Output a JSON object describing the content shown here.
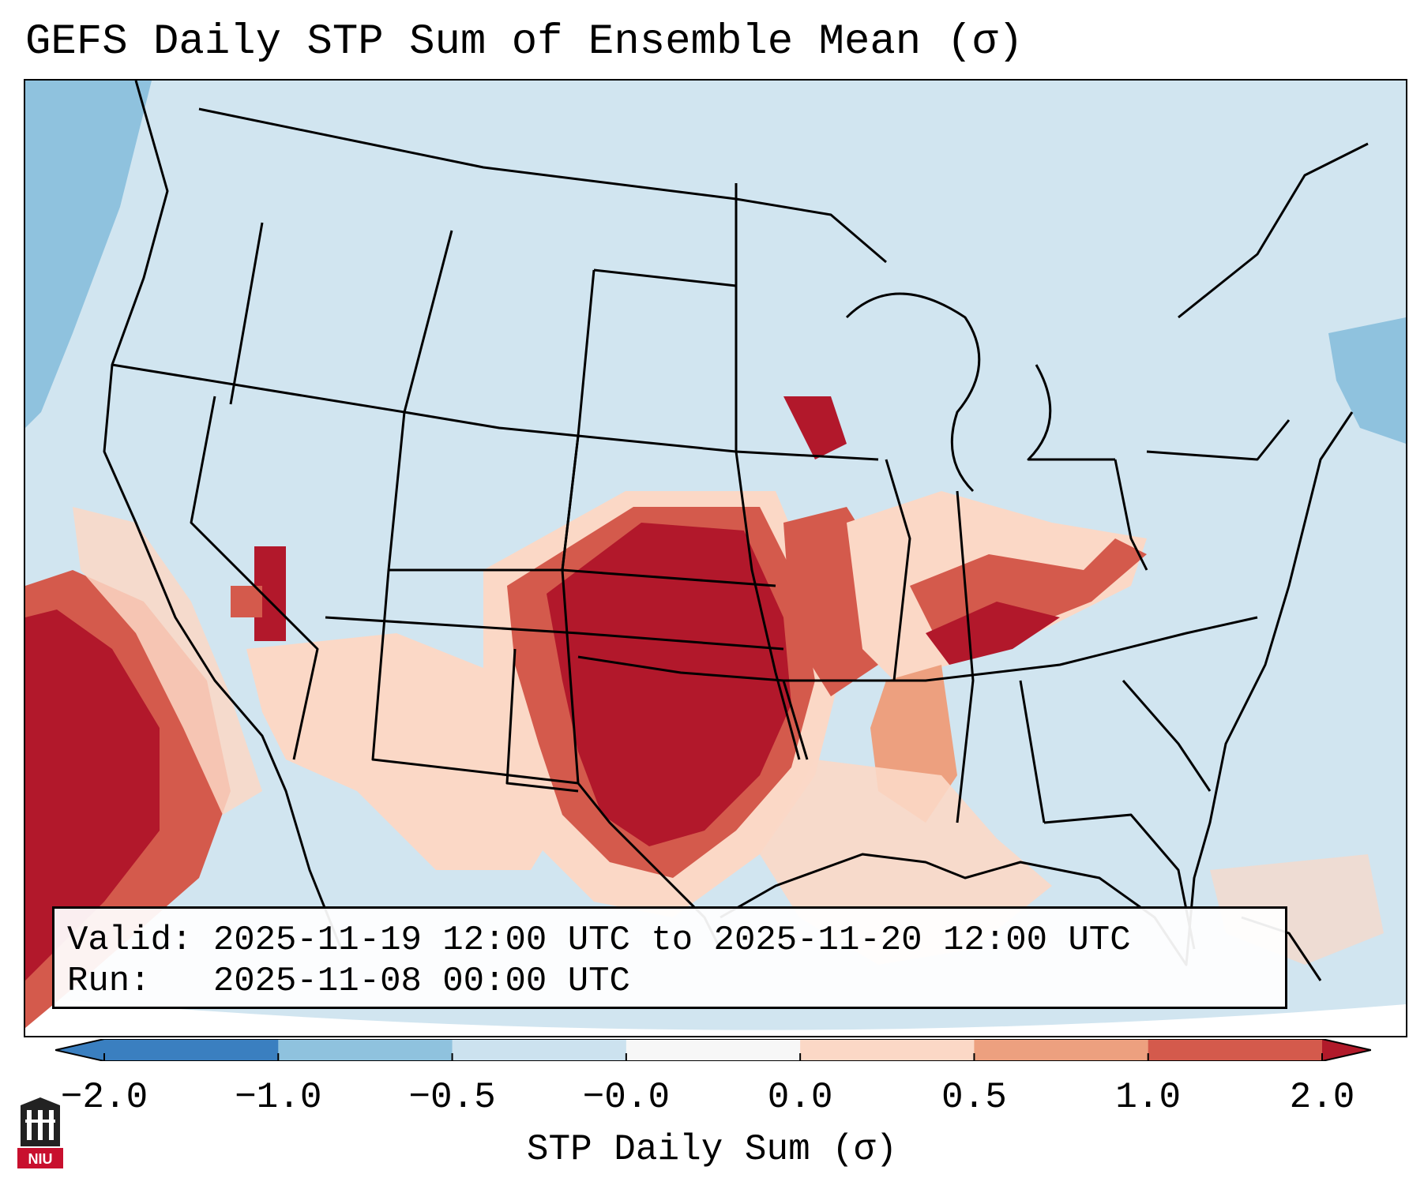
{
  "title": "GEFS Daily STP Sum of Ensemble Mean (σ)",
  "valid_line": "Valid: 2025-11-19 12:00 UTC to 2025-11-20 12:00 UTC",
  "run_line": "Run:   2025-11-08 00:00 UTC",
  "colorbar": {
    "label": "STP Daily Sum (σ)",
    "ticks": [
      "−2.0",
      "−1.0",
      "−0.5",
      "−0.0",
      "0.0",
      "0.5",
      "1.0",
      "2.0"
    ],
    "colors": [
      "#3a7fc0",
      "#8fc2de",
      "#cce2ef",
      "#f7f7f7",
      "#fbd8c6",
      "#eda07f",
      "#d45a4c",
      "#b11a2a"
    ]
  },
  "map": {
    "background_color": "#d1e5f0",
    "hotspot_color": "#b2182b",
    "icons": [
      "state-boundaries",
      "coastline-outline"
    ]
  },
  "logo": {
    "text": "NIU"
  }
}
